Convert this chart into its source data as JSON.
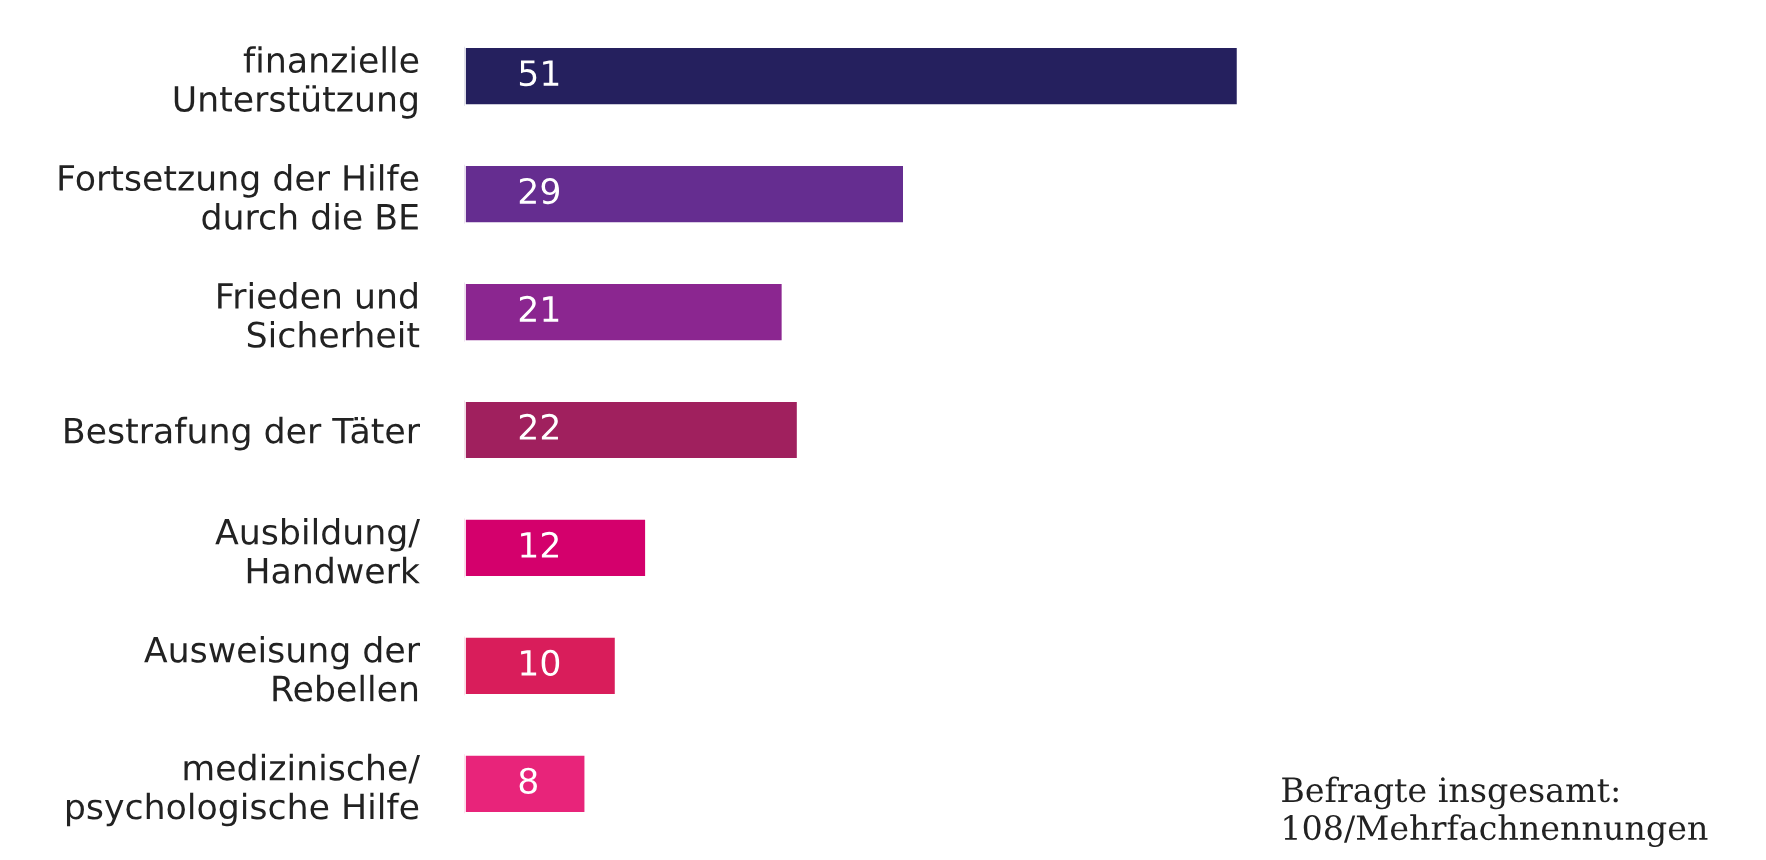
{
  "chart_data": {
    "type": "bar",
    "orientation": "horizontal",
    "data_labels": true,
    "categories": [
      "finanzielle\nUnterstützung",
      "Fortsetzung der Hilfe\ndurch die BE",
      "Frieden und\nSicherheit",
      "Bestrafung der Täter",
      "Ausbildung/\nHandwerk",
      "Ausweisung der\nRebellen",
      "medizinische/\npsychologische Hilfe"
    ],
    "values": [
      51,
      29,
      21,
      22,
      12,
      10,
      8
    ],
    "colors": [
      "#25205e",
      "#652d90",
      "#8b2690",
      "#a0205e",
      "#d4006c",
      "#d91d5b",
      "#e8247a"
    ],
    "annotations": [
      "Befragte insgesamt:\n108/Mehrfachnennungen"
    ]
  }
}
